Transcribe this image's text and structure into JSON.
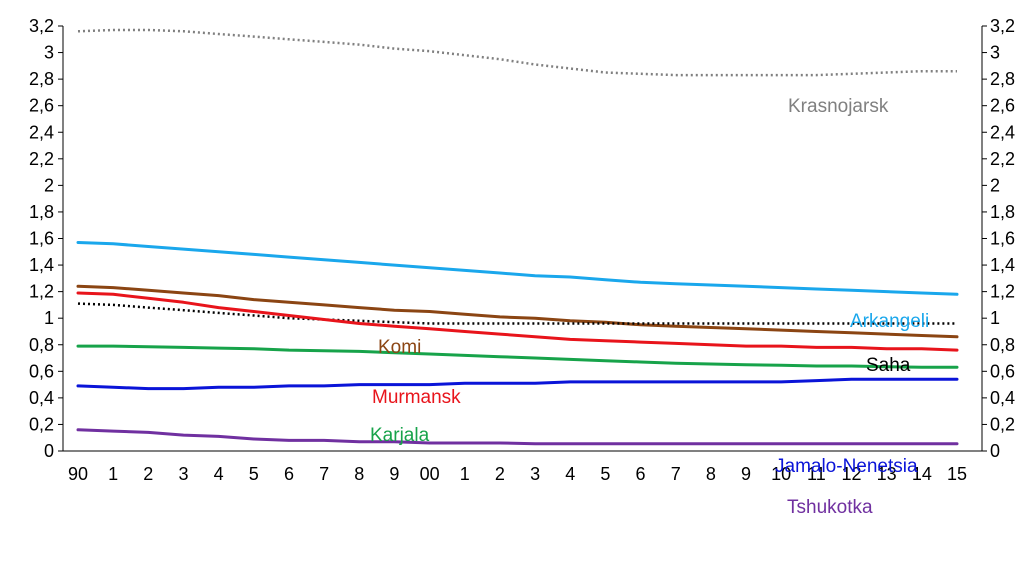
{
  "chart_data": {
    "type": "line",
    "x": [
      "90",
      "1",
      "2",
      "3",
      "4",
      "5",
      "6",
      "7",
      "8",
      "9",
      "00",
      "1",
      "2",
      "3",
      "4",
      "5",
      "6",
      "7",
      "8",
      "9",
      "10",
      "11",
      "12",
      "13",
      "14",
      "15"
    ],
    "y_ticks": [
      "0",
      "0,2",
      "0,4",
      "0,6",
      "0,8",
      "1",
      "1,2",
      "1,4",
      "1,6",
      "1,8",
      "2",
      "2,2",
      "2,4",
      "2,6",
      "2,8",
      "3",
      "3,2"
    ],
    "ylim": [
      0,
      3.2
    ],
    "secondary_y_axis": true,
    "grid": false,
    "legend": "none",
    "series": [
      {
        "name": "Krasnojarsk",
        "color": "#808080",
        "dash": "dotted",
        "values": [
          3.16,
          3.17,
          3.17,
          3.16,
          3.14,
          3.12,
          3.1,
          3.08,
          3.06,
          3.03,
          3.01,
          2.98,
          2.95,
          2.91,
          2.88,
          2.85,
          2.84,
          2.83,
          2.83,
          2.83,
          2.83,
          2.83,
          2.84,
          2.85,
          2.86,
          2.86
        ]
      },
      {
        "name": "Arkangeli",
        "color": "#1aa7ec",
        "dash": "solid",
        "values": [
          1.57,
          1.56,
          1.54,
          1.52,
          1.5,
          1.48,
          1.46,
          1.44,
          1.42,
          1.4,
          1.38,
          1.36,
          1.34,
          1.32,
          1.31,
          1.29,
          1.27,
          1.26,
          1.25,
          1.24,
          1.23,
          1.22,
          1.21,
          1.2,
          1.19,
          1.18
        ]
      },
      {
        "name": "Komi",
        "color": "#8b4513",
        "dash": "solid",
        "values": [
          1.24,
          1.23,
          1.21,
          1.19,
          1.17,
          1.14,
          1.12,
          1.1,
          1.08,
          1.06,
          1.05,
          1.03,
          1.01,
          1.0,
          0.98,
          0.97,
          0.95,
          0.94,
          0.93,
          0.92,
          0.91,
          0.9,
          0.89,
          0.88,
          0.87,
          0.86
        ]
      },
      {
        "name": "Saha",
        "color": "#000000",
        "dash": "dotted",
        "values": [
          1.11,
          1.1,
          1.08,
          1.06,
          1.04,
          1.02,
          1.0,
          0.99,
          0.98,
          0.97,
          0.96,
          0.96,
          0.96,
          0.96,
          0.96,
          0.96,
          0.96,
          0.96,
          0.96,
          0.96,
          0.96,
          0.96,
          0.96,
          0.96,
          0.96,
          0.96
        ]
      },
      {
        "name": "Murmansk",
        "color": "#e8141b",
        "dash": "solid",
        "values": [
          1.19,
          1.18,
          1.15,
          1.12,
          1.08,
          1.05,
          1.02,
          0.99,
          0.96,
          0.94,
          0.92,
          0.9,
          0.88,
          0.86,
          0.84,
          0.83,
          0.82,
          0.81,
          0.8,
          0.79,
          0.79,
          0.78,
          0.78,
          0.77,
          0.77,
          0.76
        ]
      },
      {
        "name": "Karjala",
        "color": "#17a34a",
        "dash": "solid",
        "values": [
          0.79,
          0.79,
          0.785,
          0.78,
          0.775,
          0.77,
          0.76,
          0.755,
          0.75,
          0.74,
          0.73,
          0.72,
          0.71,
          0.7,
          0.69,
          0.68,
          0.67,
          0.66,
          0.655,
          0.65,
          0.645,
          0.64,
          0.64,
          0.635,
          0.63,
          0.63
        ]
      },
      {
        "name": "Jamalo-Nenetsia",
        "color": "#0a14d8",
        "dash": "solid",
        "values": [
          0.49,
          0.48,
          0.47,
          0.47,
          0.48,
          0.48,
          0.49,
          0.49,
          0.5,
          0.5,
          0.5,
          0.51,
          0.51,
          0.51,
          0.52,
          0.52,
          0.52,
          0.52,
          0.52,
          0.52,
          0.52,
          0.53,
          0.54,
          0.54,
          0.54,
          0.54
        ]
      },
      {
        "name": "Tshukotka",
        "color": "#7030a0",
        "dash": "solid",
        "values": [
          0.16,
          0.15,
          0.14,
          0.12,
          0.11,
          0.09,
          0.08,
          0.08,
          0.07,
          0.07,
          0.06,
          0.06,
          0.06,
          0.055,
          0.055,
          0.055,
          0.055,
          0.055,
          0.055,
          0.055,
          0.055,
          0.055,
          0.055,
          0.055,
          0.055,
          0.055
        ]
      }
    ]
  }
}
